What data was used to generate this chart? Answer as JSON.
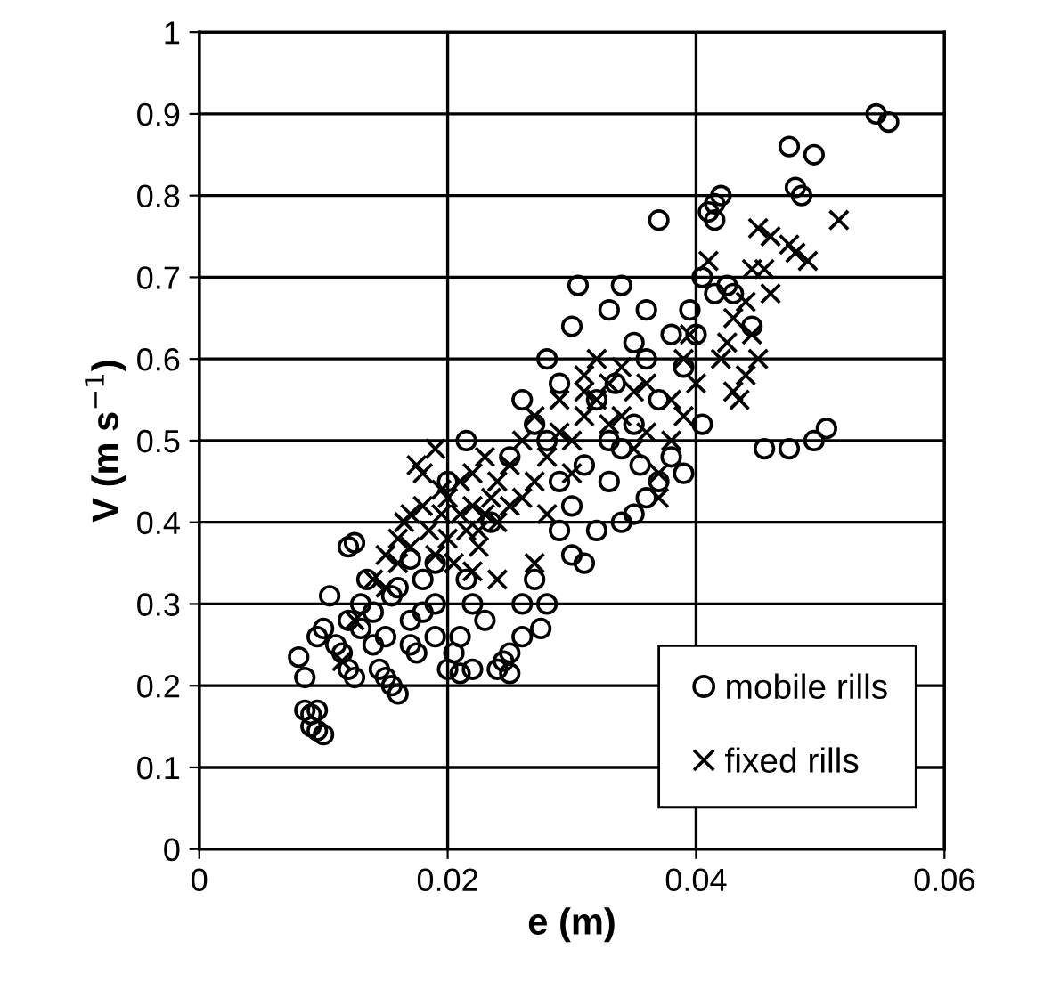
{
  "chart_data": {
    "type": "scatter",
    "xlabel": "e (m)",
    "ylabel": "V (m s$^{−1}$)",
    "xlim": [
      0,
      0.06
    ],
    "ylim": [
      0,
      1
    ],
    "xticks": [
      0,
      0.02,
      0.04,
      0.06
    ],
    "yticks": [
      0,
      0.1,
      0.2,
      0.3,
      0.4,
      0.5,
      0.6,
      0.7,
      0.8,
      0.9,
      1
    ],
    "grid": true,
    "legend": "bottom right",
    "series": [
      {
        "name": "mobile rills",
        "color": "#000000",
        "marker": "circle",
        "x": [
          0.008,
          0.0085,
          0.0085,
          0.009,
          0.009,
          0.0095,
          0.0095,
          0.01,
          0.0095,
          0.01,
          0.0105,
          0.011,
          0.012,
          0.0125,
          0.012,
          0.0115,
          0.012,
          0.0125,
          0.013,
          0.013,
          0.0135,
          0.014,
          0.014,
          0.0145,
          0.015,
          0.015,
          0.0155,
          0.016,
          0.016,
          0.017,
          0.017,
          0.0175,
          0.018,
          0.018,
          0.019,
          0.019,
          0.02,
          0.0205,
          0.021,
          0.021,
          0.022,
          0.022,
          0.023,
          0.024,
          0.0245,
          0.025,
          0.025,
          0.026,
          0.026,
          0.027,
          0.0275,
          0.028,
          0.0215,
          0.019,
          0.017,
          0.0155,
          0.02,
          0.0215,
          0.0235,
          0.025,
          0.026,
          0.027,
          0.028,
          0.029,
          0.029,
          0.03,
          0.03,
          0.031,
          0.031,
          0.032,
          0.032,
          0.033,
          0.033,
          0.0335,
          0.034,
          0.034,
          0.035,
          0.035,
          0.0355,
          0.036,
          0.036,
          0.037,
          0.037,
          0.038,
          0.038,
          0.039,
          0.039,
          0.04,
          0.028,
          0.029,
          0.03,
          0.0305,
          0.033,
          0.035,
          0.037,
          0.034,
          0.036,
          0.0395,
          0.0405,
          0.041,
          0.0415,
          0.042,
          0.0415,
          0.0405,
          0.0415,
          0.043,
          0.0455,
          0.0475,
          0.0485,
          0.0495,
          0.0475,
          0.0495,
          0.0505,
          0.048,
          0.0545,
          0.0555,
          0.0425,
          0.0445
        ],
        "values": [
          0.235,
          0.21,
          0.17,
          0.165,
          0.15,
          0.145,
          0.17,
          0.14,
          0.26,
          0.27,
          0.31,
          0.25,
          0.37,
          0.375,
          0.28,
          0.24,
          0.22,
          0.21,
          0.27,
          0.3,
          0.33,
          0.29,
          0.25,
          0.22,
          0.21,
          0.26,
          0.2,
          0.19,
          0.32,
          0.28,
          0.25,
          0.24,
          0.29,
          0.33,
          0.3,
          0.26,
          0.22,
          0.24,
          0.215,
          0.26,
          0.22,
          0.3,
          0.28,
          0.22,
          0.23,
          0.215,
          0.24,
          0.26,
          0.3,
          0.33,
          0.27,
          0.3,
          0.33,
          0.35,
          0.355,
          0.31,
          0.45,
          0.5,
          0.4,
          0.48,
          0.55,
          0.52,
          0.5,
          0.45,
          0.39,
          0.36,
          0.42,
          0.35,
          0.47,
          0.55,
          0.39,
          0.45,
          0.5,
          0.57,
          0.4,
          0.49,
          0.41,
          0.52,
          0.47,
          0.6,
          0.43,
          0.45,
          0.55,
          0.48,
          0.63,
          0.46,
          0.59,
          0.63,
          0.6,
          0.57,
          0.64,
          0.69,
          0.66,
          0.62,
          0.77,
          0.69,
          0.66,
          0.66,
          0.52,
          0.78,
          0.79,
          0.8,
          0.77,
          0.7,
          0.68,
          0.68,
          0.49,
          0.86,
          0.8,
          0.85,
          0.49,
          0.5,
          0.515,
          0.81,
          0.9,
          0.89,
          0.69,
          0.64
        ]
      },
      {
        "name": "fixed rills",
        "color": "#000000",
        "marker": "cross",
        "x": [
          0.0115,
          0.0125,
          0.014,
          0.015,
          0.016,
          0.0165,
          0.017,
          0.0175,
          0.018,
          0.018,
          0.0185,
          0.019,
          0.019,
          0.0195,
          0.02,
          0.02,
          0.0205,
          0.021,
          0.021,
          0.0215,
          0.022,
          0.022,
          0.0225,
          0.023,
          0.023,
          0.0235,
          0.024,
          0.024,
          0.025,
          0.025,
          0.026,
          0.026,
          0.027,
          0.027,
          0.028,
          0.028,
          0.029,
          0.029,
          0.03,
          0.03,
          0.031,
          0.031,
          0.032,
          0.032,
          0.033,
          0.033,
          0.034,
          0.034,
          0.035,
          0.035,
          0.036,
          0.036,
          0.037,
          0.037,
          0.038,
          0.038,
          0.039,
          0.039,
          0.04,
          0.0395,
          0.041,
          0.042,
          0.0425,
          0.043,
          0.043,
          0.0435,
          0.044,
          0.044,
          0.0445,
          0.045,
          0.0445,
          0.0455,
          0.046,
          0.0475,
          0.048,
          0.049,
          0.045,
          0.046,
          0.0515,
          0.031,
          0.027,
          0.024,
          0.022,
          0.016,
          0.015,
          0.0225,
          0.0195,
          0.017
        ],
        "values": [
          0.23,
          0.28,
          0.33,
          0.36,
          0.38,
          0.4,
          0.37,
          0.47,
          0.46,
          0.42,
          0.39,
          0.49,
          0.36,
          0.41,
          0.43,
          0.38,
          0.35,
          0.41,
          0.45,
          0.39,
          0.46,
          0.42,
          0.37,
          0.41,
          0.48,
          0.43,
          0.4,
          0.45,
          0.42,
          0.47,
          0.43,
          0.5,
          0.45,
          0.53,
          0.48,
          0.41,
          0.51,
          0.55,
          0.5,
          0.46,
          0.53,
          0.58,
          0.55,
          0.6,
          0.52,
          0.57,
          0.59,
          0.53,
          0.56,
          0.49,
          0.51,
          0.57,
          0.46,
          0.43,
          0.5,
          0.55,
          0.6,
          0.53,
          0.57,
          0.63,
          0.72,
          0.6,
          0.62,
          0.65,
          0.56,
          0.55,
          0.58,
          0.67,
          0.63,
          0.6,
          0.71,
          0.71,
          0.68,
          0.74,
          0.73,
          0.72,
          0.76,
          0.75,
          0.77,
          0.56,
          0.35,
          0.33,
          0.34,
          0.35,
          0.32,
          0.39,
          0.44,
          0.41
        ]
      }
    ]
  }
}
